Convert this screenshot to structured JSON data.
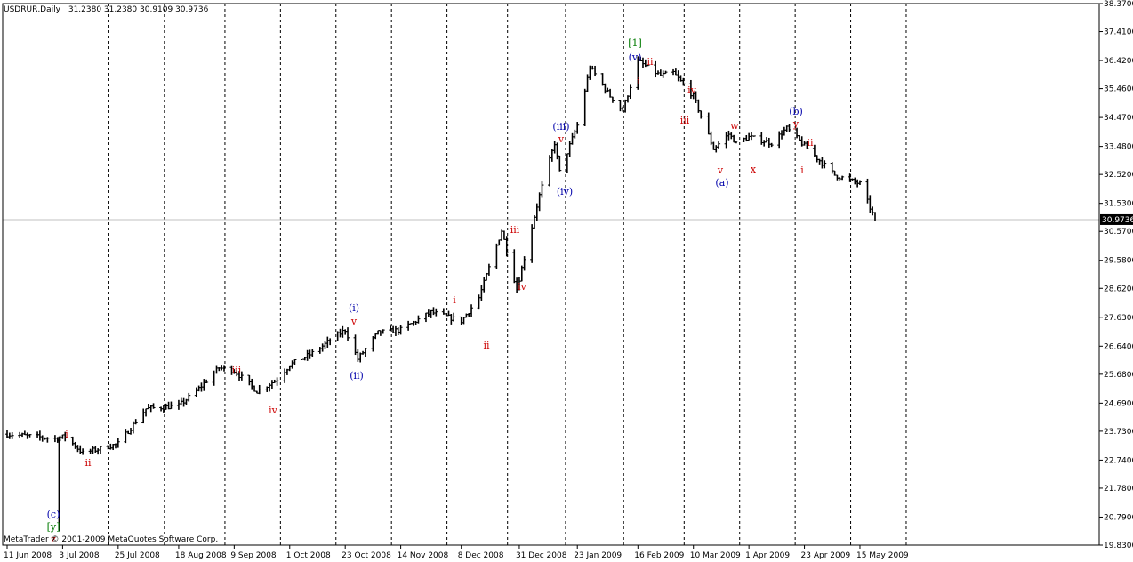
{
  "header": {
    "symbol": "USDRUR,Daily",
    "ohlc": "31.2380 31.2380 30.9109 30.9736"
  },
  "copyright": "MetaTrader © 2001-2009 MetaQuotes Software Corp.",
  "current_price_label": "30.9736",
  "colors": {
    "background": "#ffffff",
    "bars": "#000000",
    "grid": "#000000",
    "annotation_red": "#cc0000",
    "annotation_blue": "#0000aa",
    "annotation_green": "#007a00",
    "price_label_bg": "#000000"
  },
  "chart_data": {
    "type": "ohlc-bar",
    "title": "USDRUR,Daily",
    "ylim": [
      19.83,
      38.37
    ],
    "y_ticks": [
      "38.3700",
      "37.4100",
      "36.4200",
      "35.4600",
      "34.4700",
      "33.4800",
      "32.5200",
      "31.5300",
      "30.5700",
      "29.5800",
      "28.6200",
      "27.6300",
      "26.6400",
      "25.6800",
      "24.6900",
      "23.7300",
      "22.7400",
      "21.7800",
      "20.7900",
      "19.8300"
    ],
    "x_tick_labels": [
      "11 Jun 2008",
      "3 Jul 2008",
      "25 Jul 2008",
      "18 Aug 2008",
      "9 Sep 2008",
      "1 Oct 2008",
      "23 Oct 2008",
      "14 Nov 2008",
      "8 Dec 2008",
      "31 Dec 2008",
      "23 Jan 2009",
      "16 Feb 2009",
      "10 Mar 2009",
      "1 Apr 2009",
      "23 Apr 2009",
      "15 May 2009"
    ],
    "grid": "dotted vertical",
    "last_close": 30.9736,
    "series": [
      {
        "x": "2008-06-11",
        "close": 23.63
      },
      {
        "x": "2008-06-30",
        "close": 23.48
      },
      {
        "x": "2008-07-04",
        "close": 23.55
      },
      {
        "x": "2008-07-11",
        "close": 22.98
      },
      {
        "x": "2008-07-25",
        "close": 23.3
      },
      {
        "x": "2008-08-05",
        "close": 24.5
      },
      {
        "x": "2008-08-18",
        "close": 24.6
      },
      {
        "x": "2008-08-25",
        "close": 25.1
      },
      {
        "x": "2008-09-03",
        "close": 25.9
      },
      {
        "x": "2008-09-09",
        "close": 25.8
      },
      {
        "x": "2008-09-18",
        "close": 25.1
      },
      {
        "x": "2008-09-26",
        "close": 25.5
      },
      {
        "x": "2008-10-01",
        "close": 26.0
      },
      {
        "x": "2008-10-10",
        "close": 26.4
      },
      {
        "x": "2008-10-23",
        "close": 27.2
      },
      {
        "x": "2008-10-28",
        "close": 26.2
      },
      {
        "x": "2008-11-05",
        "close": 27.1
      },
      {
        "x": "2008-11-14",
        "close": 27.2
      },
      {
        "x": "2008-11-26",
        "close": 27.8
      },
      {
        "x": "2008-12-08",
        "close": 27.5
      },
      {
        "x": "2008-12-15",
        "close": 28.3
      },
      {
        "x": "2008-12-24",
        "close": 30.6
      },
      {
        "x": "2008-12-30",
        "close": 28.6
      },
      {
        "x": "2009-01-08",
        "close": 31.8
      },
      {
        "x": "2009-01-14",
        "close": 33.6
      },
      {
        "x": "2009-01-16",
        "close": 32.6
      },
      {
        "x": "2009-01-23",
        "close": 34.2
      },
      {
        "x": "2009-01-28",
        "close": 36.2
      },
      {
        "x": "2009-02-05",
        "close": 35.2
      },
      {
        "x": "2009-02-10",
        "close": 34.7
      },
      {
        "x": "2009-02-16",
        "close": 36.4
      },
      {
        "x": "2009-02-25",
        "close": 35.9
      },
      {
        "x": "2009-03-02",
        "close": 36.0
      },
      {
        "x": "2009-03-10",
        "close": 35.2
      },
      {
        "x": "2009-03-18",
        "close": 33.4
      },
      {
        "x": "2009-03-24",
        "close": 33.9
      },
      {
        "x": "2009-03-27",
        "close": 33.6
      },
      {
        "x": "2009-04-01",
        "close": 33.8
      },
      {
        "x": "2009-04-10",
        "close": 33.6
      },
      {
        "x": "2009-04-16",
        "close": 34.1
      },
      {
        "x": "2009-04-23",
        "close": 33.5
      },
      {
        "x": "2009-05-05",
        "close": 32.5
      },
      {
        "x": "2009-05-15",
        "close": 32.2
      },
      {
        "x": "2009-05-21",
        "close": 30.97
      }
    ],
    "annotations": [
      {
        "text": "(c)",
        "color": "blue"
      },
      {
        "text": "[y]",
        "color": "green"
      },
      {
        "text": "z",
        "color": "red"
      },
      {
        "text": "i",
        "color": "red"
      },
      {
        "text": "ii",
        "color": "red"
      },
      {
        "text": "iii",
        "color": "red"
      },
      {
        "text": "iv",
        "color": "red"
      },
      {
        "text": "(i)",
        "color": "blue"
      },
      {
        "text": "v",
        "color": "red"
      },
      {
        "text": "(ii)",
        "color": "blue"
      },
      {
        "text": "i",
        "color": "red"
      },
      {
        "text": "ii",
        "color": "red"
      },
      {
        "text": "iii",
        "color": "red"
      },
      {
        "text": "iv",
        "color": "red"
      },
      {
        "text": "(iii)",
        "color": "blue"
      },
      {
        "text": "v",
        "color": "red"
      },
      {
        "text": "(iv)",
        "color": "blue"
      },
      {
        "text": "[1]",
        "color": "green"
      },
      {
        "text": "(v)",
        "color": "blue"
      },
      {
        "text": "ii",
        "color": "red"
      },
      {
        "text": "i",
        "color": "red"
      },
      {
        "text": "iv",
        "color": "red"
      },
      {
        "text": "iii",
        "color": "red"
      },
      {
        "text": "w",
        "color": "red"
      },
      {
        "text": "v",
        "color": "red"
      },
      {
        "text": "(a)",
        "color": "blue"
      },
      {
        "text": "x",
        "color": "red"
      },
      {
        "text": "(b)",
        "color": "blue"
      },
      {
        "text": "y",
        "color": "red"
      },
      {
        "text": "ii",
        "color": "red"
      },
      {
        "text": "i",
        "color": "red"
      }
    ]
  }
}
